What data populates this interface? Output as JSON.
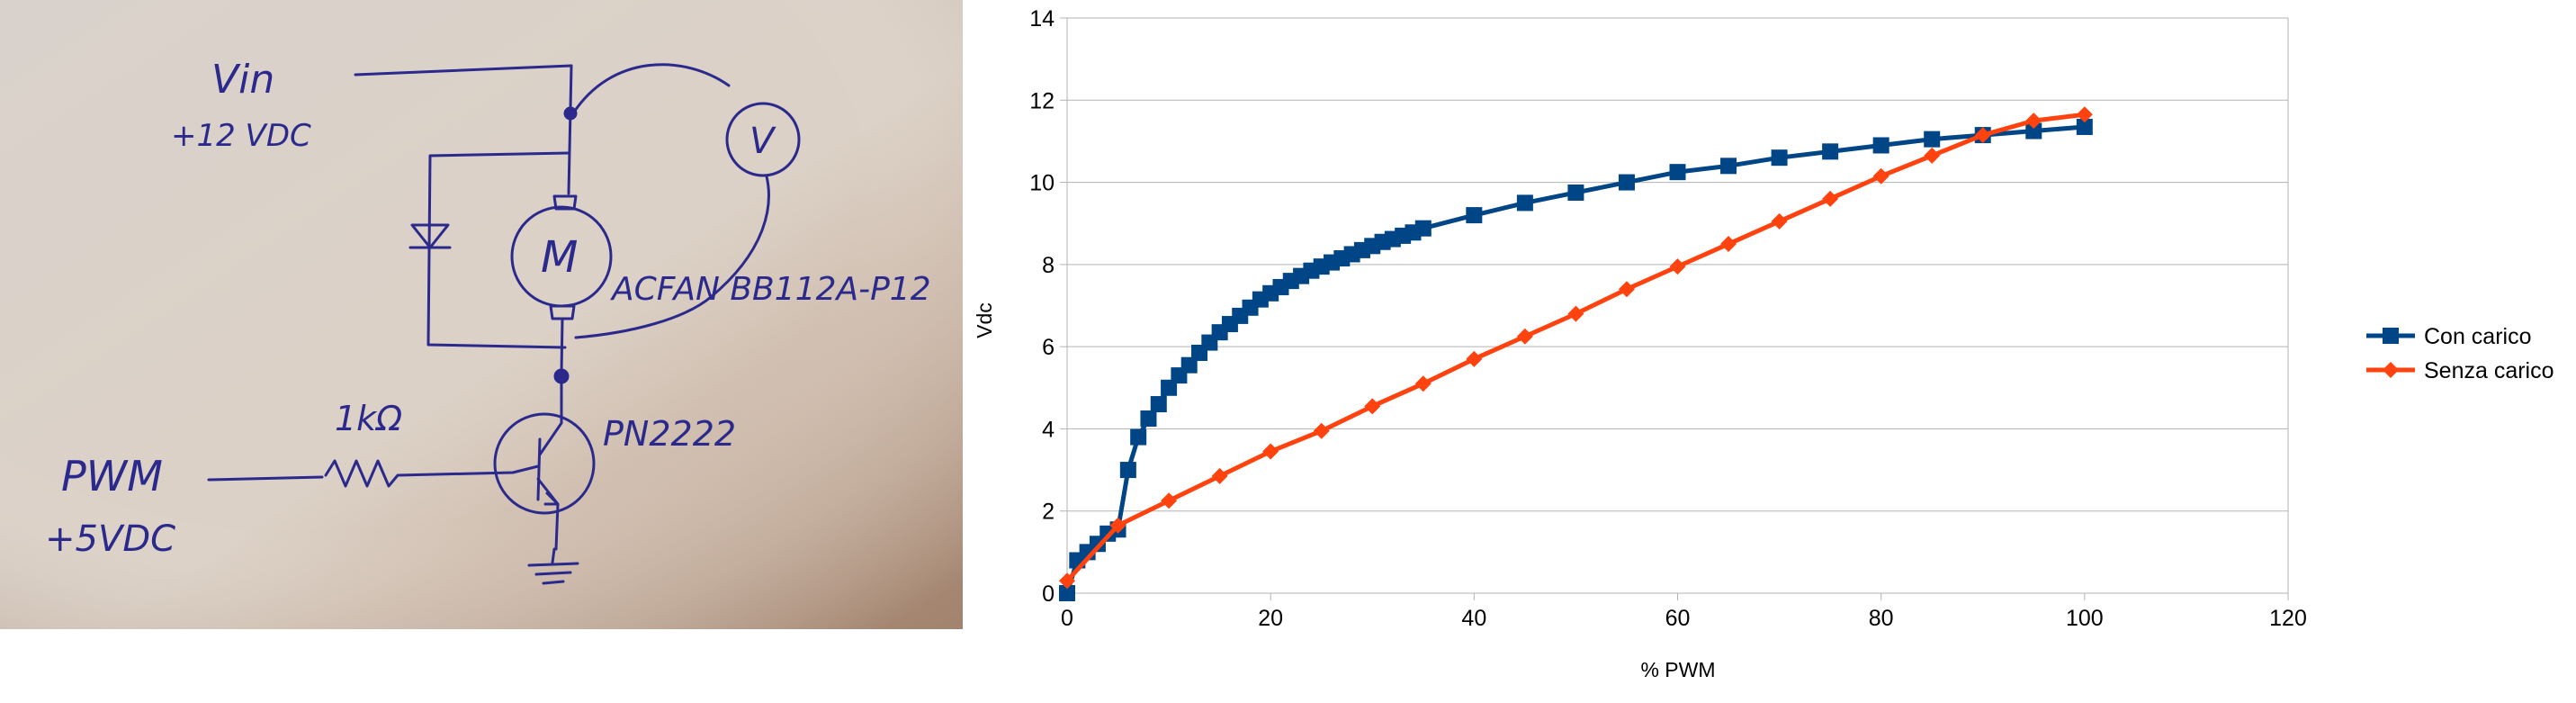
{
  "sketch": {
    "vin_label": "Vin",
    "vin_value": "+12 VDC",
    "meter_label": "V",
    "motor_label": "M",
    "fan_model": "ACFAN BB112A-P12",
    "resistor_label": "1kΩ",
    "transistor_label": "PN2222",
    "pwm_label": "PWM",
    "pwm_value": "+5VDC"
  },
  "colors": {
    "con_carico": "#004586",
    "senza_carico": "#ff420e",
    "grid": "#b3b3b3",
    "ink": "#2b2a8c"
  },
  "chart_data": {
    "type": "line",
    "title": "",
    "xlabel": "% PWM",
    "ylabel": "Vdc",
    "xlim": [
      0,
      120
    ],
    "ylim": [
      0,
      14
    ],
    "x_ticks": [
      0,
      20,
      40,
      60,
      80,
      100,
      120
    ],
    "y_ticks": [
      0,
      2,
      4,
      6,
      8,
      10,
      12,
      14
    ],
    "grid": "horizontal",
    "legend_position": "right",
    "series": [
      {
        "name": "Con carico",
        "marker": "square",
        "color": "#004586",
        "points": [
          [
            0,
            0
          ],
          [
            1,
            0.8
          ],
          [
            2,
            1.0
          ],
          [
            3,
            1.2
          ],
          [
            4,
            1.45
          ],
          [
            5,
            1.55
          ],
          [
            6,
            3.0
          ],
          [
            7,
            3.8
          ],
          [
            8,
            4.25
          ],
          [
            9,
            4.6
          ],
          [
            10,
            5.0
          ],
          [
            11,
            5.3
          ],
          [
            12,
            5.55
          ],
          [
            13,
            5.85
          ],
          [
            14,
            6.1
          ],
          [
            15,
            6.35
          ],
          [
            16,
            6.55
          ],
          [
            17,
            6.75
          ],
          [
            18,
            6.95
          ],
          [
            19,
            7.15
          ],
          [
            20,
            7.3
          ],
          [
            21,
            7.45
          ],
          [
            22,
            7.6
          ],
          [
            23,
            7.72
          ],
          [
            24,
            7.85
          ],
          [
            25,
            7.95
          ],
          [
            26,
            8.05
          ],
          [
            27,
            8.15
          ],
          [
            28,
            8.25
          ],
          [
            29,
            8.35
          ],
          [
            30,
            8.45
          ],
          [
            31,
            8.55
          ],
          [
            32,
            8.62
          ],
          [
            33,
            8.7
          ],
          [
            34,
            8.78
          ],
          [
            35,
            8.88
          ],
          [
            40,
            9.2
          ],
          [
            45,
            9.5
          ],
          [
            50,
            9.75
          ],
          [
            55,
            10.0
          ],
          [
            60,
            10.25
          ],
          [
            65,
            10.4
          ],
          [
            70,
            10.6
          ],
          [
            75,
            10.75
          ],
          [
            80,
            10.9
          ],
          [
            85,
            11.05
          ],
          [
            90,
            11.15
          ],
          [
            95,
            11.25
          ],
          [
            100,
            11.35
          ]
        ]
      },
      {
        "name": "Senza carico",
        "marker": "diamond",
        "color": "#ff420e",
        "points": [
          [
            0,
            0.3
          ],
          [
            5,
            1.65
          ],
          [
            10,
            2.25
          ],
          [
            15,
            2.85
          ],
          [
            20,
            3.45
          ],
          [
            25,
            3.95
          ],
          [
            30,
            4.55
          ],
          [
            35,
            5.1
          ],
          [
            40,
            5.7
          ],
          [
            45,
            6.25
          ],
          [
            50,
            6.8
          ],
          [
            55,
            7.4
          ],
          [
            60,
            7.95
          ],
          [
            65,
            8.5
          ],
          [
            70,
            9.05
          ],
          [
            75,
            9.6
          ],
          [
            80,
            10.15
          ],
          [
            85,
            10.65
          ],
          [
            90,
            11.15
          ],
          [
            95,
            11.5
          ],
          [
            100,
            11.65
          ]
        ]
      }
    ]
  }
}
